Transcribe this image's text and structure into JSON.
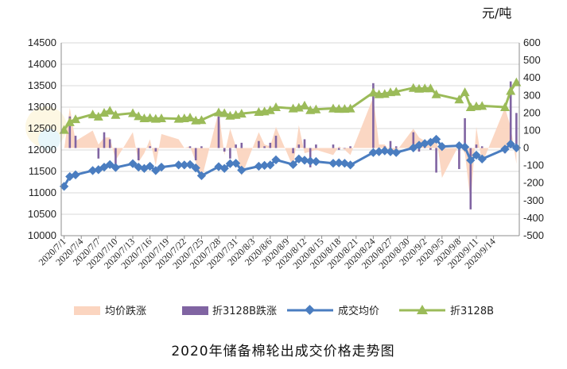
{
  "unit_label": "元/吨",
  "chart_data": {
    "type": "bar+line",
    "title": "2020年储备棉轮出成交价格走势图",
    "y_left": {
      "min": 10000,
      "max": 14500,
      "step": 500
    },
    "y_right": {
      "min": -500,
      "max": 600,
      "step": 100
    },
    "x_tick_labels": [
      "2020/7/1",
      "2020/7/4",
      "2020/7/7",
      "2020/7/10",
      "2020/7/13",
      "2020/7/16",
      "2020/7/19",
      "2020/7/22",
      "2020/7/25",
      "2020/7/28",
      "2020/7/31",
      "2020/8/3",
      "2020/8/6",
      "2020/8/9",
      "2020/8/12",
      "2020/8/15",
      "2020/8/18",
      "2020/8/21",
      "2020/8/24",
      "2020/8/27",
      "2020/8/30",
      "2020/9/2",
      "2020/9/5",
      "2020/9/8",
      "2020/9/11",
      "2020/9/14"
    ],
    "legend": [
      "均价跌涨",
      "折3128B跌涨",
      "成交均价",
      "折3128B"
    ],
    "series": [
      {
        "name": "成交均价",
        "axis": "left",
        "kind": "line-diamond",
        "color": "#4a7dc0",
        "points": [
          [
            0,
            11150
          ],
          [
            1,
            11380
          ],
          [
            2,
            11420
          ],
          [
            5,
            11520
          ],
          [
            6,
            11540
          ],
          [
            7,
            11600
          ],
          [
            8,
            11660
          ],
          [
            9,
            11590
          ],
          [
            12,
            11680
          ],
          [
            13,
            11600
          ],
          [
            14,
            11570
          ],
          [
            15,
            11620
          ],
          [
            16,
            11520
          ],
          [
            17,
            11600
          ],
          [
            20,
            11650
          ],
          [
            21,
            11650
          ],
          [
            22,
            11660
          ],
          [
            23,
            11580
          ],
          [
            24,
            11400
          ],
          [
            27,
            11610
          ],
          [
            28,
            11570
          ],
          [
            29,
            11680
          ],
          [
            30,
            11690
          ],
          [
            31,
            11530
          ],
          [
            34,
            11620
          ],
          [
            35,
            11640
          ],
          [
            36,
            11650
          ],
          [
            37,
            11770
          ],
          [
            40,
            11660
          ],
          [
            41,
            11790
          ],
          [
            42,
            11760
          ],
          [
            43,
            11740
          ],
          [
            44,
            11730
          ],
          [
            47,
            11690
          ],
          [
            48,
            11700
          ],
          [
            49,
            11690
          ],
          [
            50,
            11650
          ],
          [
            54,
            11940
          ],
          [
            55,
            11960
          ],
          [
            56,
            11980
          ],
          [
            57,
            11960
          ],
          [
            58,
            11940
          ],
          [
            61,
            12050
          ],
          [
            62,
            12110
          ],
          [
            63,
            12150
          ],
          [
            64,
            12180
          ],
          [
            65,
            12250
          ],
          [
            66,
            12080
          ],
          [
            69,
            12100
          ],
          [
            70,
            12070
          ],
          [
            71,
            11760
          ],
          [
            72,
            11880
          ],
          [
            73,
            11790
          ],
          [
            77,
            12020
          ],
          [
            78,
            12140
          ],
          [
            79,
            12050
          ]
        ]
      },
      {
        "name": "折3128B",
        "axis": "left",
        "kind": "line-triangle",
        "color": "#9bbb59",
        "points": [
          [
            0,
            12470
          ],
          [
            1,
            12650
          ],
          [
            2,
            12720
          ],
          [
            5,
            12830
          ],
          [
            6,
            12780
          ],
          [
            7,
            12870
          ],
          [
            8,
            12920
          ],
          [
            9,
            12820
          ],
          [
            12,
            12860
          ],
          [
            13,
            12790
          ],
          [
            14,
            12740
          ],
          [
            15,
            12750
          ],
          [
            16,
            12730
          ],
          [
            17,
            12740
          ],
          [
            20,
            12730
          ],
          [
            21,
            12740
          ],
          [
            22,
            12760
          ],
          [
            23,
            12690
          ],
          [
            24,
            12700
          ],
          [
            27,
            12880
          ],
          [
            28,
            12860
          ],
          [
            29,
            12800
          ],
          [
            30,
            12820
          ],
          [
            31,
            12850
          ],
          [
            34,
            12890
          ],
          [
            35,
            12900
          ],
          [
            36,
            12930
          ],
          [
            37,
            13000
          ],
          [
            40,
            12970
          ],
          [
            41,
            12990
          ],
          [
            42,
            13040
          ],
          [
            43,
            12930
          ],
          [
            44,
            12950
          ],
          [
            47,
            12970
          ],
          [
            48,
            12960
          ],
          [
            49,
            12960
          ],
          [
            50,
            12970
          ],
          [
            54,
            13340
          ],
          [
            55,
            13300
          ],
          [
            56,
            13310
          ],
          [
            57,
            13350
          ],
          [
            58,
            13360
          ],
          [
            61,
            13450
          ],
          [
            62,
            13430
          ],
          [
            63,
            13440
          ],
          [
            64,
            13440
          ],
          [
            65,
            13300
          ],
          [
            69,
            13180
          ],
          [
            70,
            13350
          ],
          [
            71,
            13000
          ],
          [
            72,
            13020
          ],
          [
            73,
            13030
          ],
          [
            77,
            13000
          ],
          [
            78,
            13380
          ],
          [
            79,
            13580
          ]
        ]
      },
      {
        "name": "均价跌涨",
        "axis": "right",
        "kind": "area",
        "color": "#fbd5c0",
        "points": [
          [
            0,
            -10
          ],
          [
            1,
            230
          ],
          [
            2,
            40
          ],
          [
            5,
            100
          ],
          [
            6,
            20
          ],
          [
            7,
            60
          ],
          [
            8,
            60
          ],
          [
            9,
            -70
          ],
          [
            12,
            90
          ],
          [
            13,
            -80
          ],
          [
            14,
            -30
          ],
          [
            15,
            50
          ],
          [
            16,
            -100
          ],
          [
            17,
            80
          ],
          [
            20,
            50
          ],
          [
            21,
            0
          ],
          [
            22,
            10
          ],
          [
            23,
            -80
          ],
          [
            24,
            -180
          ],
          [
            27,
            210
          ],
          [
            28,
            -40
          ],
          [
            29,
            110
          ],
          [
            30,
            10
          ],
          [
            31,
            -160
          ],
          [
            34,
            90
          ],
          [
            35,
            20
          ],
          [
            36,
            10
          ],
          [
            37,
            120
          ],
          [
            40,
            -110
          ],
          [
            41,
            130
          ],
          [
            42,
            -30
          ],
          [
            43,
            -20
          ],
          [
            44,
            -10
          ],
          [
            47,
            -40
          ],
          [
            48,
            10
          ],
          [
            49,
            -10
          ],
          [
            50,
            -40
          ],
          [
            54,
            290
          ],
          [
            55,
            20
          ],
          [
            56,
            20
          ],
          [
            57,
            -20
          ],
          [
            58,
            -20
          ],
          [
            61,
            110
          ],
          [
            62,
            60
          ],
          [
            63,
            40
          ],
          [
            64,
            30
          ],
          [
            65,
            70
          ],
          [
            66,
            -170
          ],
          [
            69,
            20
          ],
          [
            70,
            -30
          ],
          [
            71,
            -310
          ],
          [
            72,
            120
          ],
          [
            73,
            -90
          ],
          [
            77,
            230
          ],
          [
            78,
            120
          ],
          [
            79,
            -90
          ]
        ]
      },
      {
        "name": "折3128B跌涨",
        "axis": "right",
        "kind": "bar",
        "color": "#8064a2",
        "points": [
          [
            1,
            180
          ],
          [
            2,
            70
          ],
          [
            6,
            -60
          ],
          [
            7,
            90
          ],
          [
            8,
            50
          ],
          [
            9,
            -100
          ],
          [
            13,
            -70
          ],
          [
            15,
            10
          ],
          [
            16,
            -20
          ],
          [
            22,
            10
          ],
          [
            23,
            -70
          ],
          [
            24,
            10
          ],
          [
            27,
            180
          ],
          [
            28,
            -20
          ],
          [
            29,
            -60
          ],
          [
            30,
            20
          ],
          [
            31,
            30
          ],
          [
            34,
            40
          ],
          [
            35,
            10
          ],
          [
            36,
            30
          ],
          [
            37,
            70
          ],
          [
            40,
            -30
          ],
          [
            41,
            20
          ],
          [
            42,
            50
          ],
          [
            43,
            -110
          ],
          [
            44,
            20
          ],
          [
            47,
            20
          ],
          [
            48,
            -10
          ],
          [
            49,
            0
          ],
          [
            50,
            10
          ],
          [
            54,
            370
          ],
          [
            55,
            -40
          ],
          [
            56,
            10
          ],
          [
            57,
            40
          ],
          [
            58,
            10
          ],
          [
            61,
            90
          ],
          [
            62,
            -20
          ],
          [
            63,
            10
          ],
          [
            64,
            -10
          ],
          [
            65,
            -140
          ],
          [
            69,
            -120
          ],
          [
            70,
            170
          ],
          [
            71,
            -350
          ],
          [
            72,
            20
          ],
          [
            73,
            10
          ],
          [
            77,
            -30
          ],
          [
            78,
            380
          ],
          [
            79,
            200
          ]
        ]
      }
    ]
  }
}
